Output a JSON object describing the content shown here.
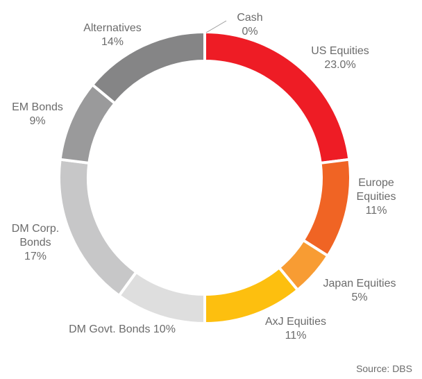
{
  "chart_data": {
    "type": "pie",
    "style": "donut",
    "slices": [
      {
        "name": "Cash",
        "value_label": "0%",
        "value": 0.0,
        "color": "#cccccc"
      },
      {
        "name": "US Equities",
        "value_label": "23.0%",
        "value": 23.0,
        "color": "#ee1c25"
      },
      {
        "name": "Europe Equities",
        "value_label": "11%",
        "value": 11.0,
        "color": "#f06424"
      },
      {
        "name": "Japan Equities",
        "value_label": "5%",
        "value": 5.0,
        "color": "#f89c33"
      },
      {
        "name": "AxJ Equities",
        "value_label": "11%",
        "value": 11.0,
        "color": "#fdbf0f"
      },
      {
        "name": "DM Govt. Bonds",
        "value_label": "10%",
        "value": 10.0,
        "color": "#dedede"
      },
      {
        "name": "DM Corp. Bonds",
        "value_label": "17%",
        "value": 17.0,
        "color": "#c7c7c8"
      },
      {
        "name": "EM Bonds",
        "value_label": "9%",
        "value": 9.0,
        "color": "#9a9a9b"
      },
      {
        "name": "Alternatives",
        "value_label": "14%",
        "value": 14.0,
        "color": "#858586"
      }
    ],
    "labels": [
      {
        "lines": [
          "Cash",
          "0%"
        ]
      },
      {
        "lines": [
          "US Equities",
          "23.0%"
        ]
      },
      {
        "lines": [
          "Europe",
          "Equities",
          "11%"
        ]
      },
      {
        "lines": [
          "Japan Equities",
          "5%"
        ]
      },
      {
        "lines": [
          "AxJ Equities",
          "11%"
        ]
      },
      {
        "lines": [
          "DM Govt. Bonds 10%"
        ]
      },
      {
        "lines": [
          "DM Corp.",
          "Bonds",
          "17%"
        ]
      },
      {
        "lines": [
          "EM Bonds",
          "9%"
        ]
      },
      {
        "lines": [
          "Alternatives",
          "14%"
        ]
      }
    ],
    "source": "Source: DBS"
  }
}
